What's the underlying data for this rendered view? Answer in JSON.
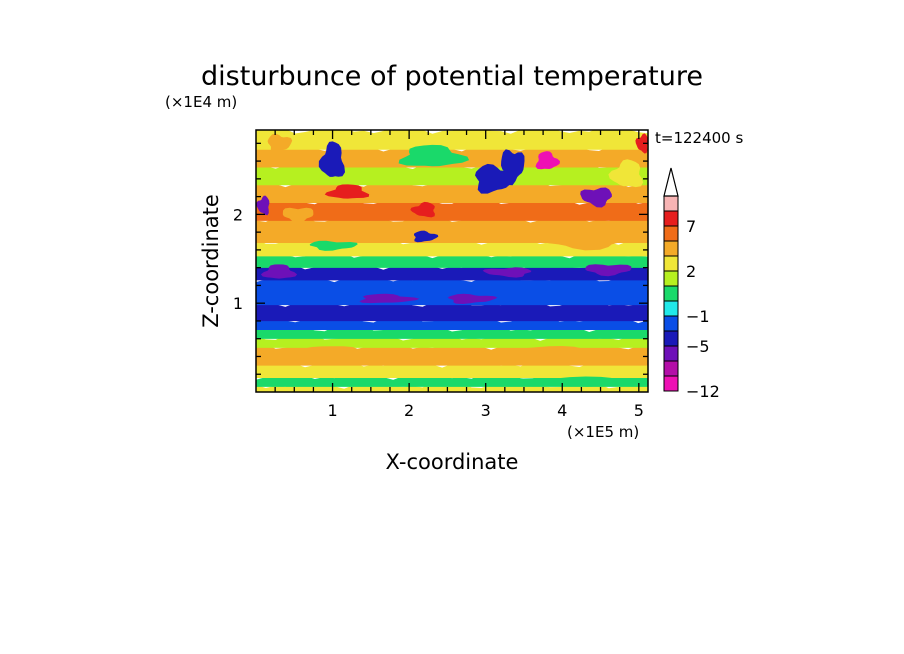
{
  "chart_data": {
    "type": "heatmap",
    "title": "disturbunce of potential temperature",
    "xlabel": "X-coordinate",
    "ylabel": "Z-coordinate",
    "x_unit": "(×1E5 m)",
    "y_unit": "(×1E4 m)",
    "time_label": "t=122400 s",
    "xlim": [
      0,
      5.12
    ],
    "ylim": [
      0,
      2.95
    ],
    "x_ticks": [
      1,
      2,
      3,
      4,
      5
    ],
    "y_ticks": [
      1,
      2
    ],
    "colorbar": {
      "levels": [
        -12,
        -9,
        -7,
        -5,
        -3,
        -1,
        0,
        1,
        2,
        3,
        5,
        7,
        9,
        12
      ],
      "colors": [
        "#ee10b4",
        "#b40ea8",
        "#6e10b8",
        "#1a1ab8",
        "#0a4ee6",
        "#21e9e9",
        "#1ad96a",
        "#b6f020",
        "#f0e638",
        "#f4aa28",
        "#f06c18",
        "#e61e1e",
        "#f7b4b4"
      ],
      "labels": [
        {
          "value": -12,
          "text": "−12"
        },
        {
          "value": -5,
          "text": "−5"
        },
        {
          "value": -1,
          "text": "−1"
        },
        {
          "value": 2,
          "text": "2"
        },
        {
          "value": 7,
          "text": "7"
        }
      ],
      "extend": "max"
    },
    "bands": [
      {
        "z": [
          0.0,
          0.08
        ],
        "value": 2.5
      },
      {
        "z": [
          0.08,
          0.18
        ],
        "value": 0.5
      },
      {
        "z": [
          0.18,
          0.32
        ],
        "value": 2.5
      },
      {
        "z": [
          0.32,
          0.52
        ],
        "value": 3.5
      },
      {
        "z": [
          0.52,
          0.62
        ],
        "value": 1.5
      },
      {
        "z": [
          0.62,
          0.72
        ],
        "value": 0.5
      },
      {
        "z": [
          0.72,
          0.82
        ],
        "value": -2
      },
      {
        "z": [
          0.82,
          1.0
        ],
        "value": -4
      },
      {
        "z": [
          1.0,
          1.28
        ],
        "value": -2
      },
      {
        "z": [
          1.28,
          1.42
        ],
        "value": -4
      },
      {
        "z": [
          1.42,
          1.55
        ],
        "value": 0.5
      },
      {
        "z": [
          1.55,
          1.7
        ],
        "value": 2.5
      },
      {
        "z": [
          1.7,
          1.95
        ],
        "value": 3.5
      },
      {
        "z": [
          1.95,
          2.15
        ],
        "value": 6
      },
      {
        "z": [
          2.15,
          2.35
        ],
        "value": 3.5
      },
      {
        "z": [
          2.35,
          2.55
        ],
        "value": 1.5
      },
      {
        "z": [
          2.55,
          2.75
        ],
        "value": 4
      },
      {
        "z": [
          2.75,
          2.95
        ],
        "value": 2.5
      }
    ],
    "features": [
      {
        "x": 0.3,
        "z": 1.35,
        "rx": 0.2,
        "rz": 0.08,
        "value": -6
      },
      {
        "x": 1.7,
        "z": 1.05,
        "rx": 0.35,
        "rz": 0.05,
        "value": -6
      },
      {
        "x": 2.8,
        "z": 1.05,
        "rx": 0.3,
        "rz": 0.05,
        "value": -6
      },
      {
        "x": 4.6,
        "z": 1.38,
        "rx": 0.3,
        "rz": 0.06,
        "value": -6
      },
      {
        "x": 3.3,
        "z": 1.35,
        "rx": 0.3,
        "rz": 0.05,
        "value": -6
      },
      {
        "x": 2.2,
        "z": 2.05,
        "rx": 0.15,
        "rz": 0.08,
        "value": 8
      },
      {
        "x": 1.2,
        "z": 2.25,
        "rx": 0.25,
        "rz": 0.08,
        "value": 8
      },
      {
        "x": 3.8,
        "z": 2.6,
        "rx": 0.14,
        "rz": 0.1,
        "value": -10
      },
      {
        "x": 3.1,
        "z": 2.4,
        "rx": 0.25,
        "rz": 0.15,
        "value": -4
      },
      {
        "x": 3.35,
        "z": 2.55,
        "rx": 0.15,
        "rz": 0.18,
        "value": -4
      },
      {
        "x": 4.45,
        "z": 2.2,
        "rx": 0.2,
        "rz": 0.1,
        "value": -6
      },
      {
        "x": 0.1,
        "z": 2.1,
        "rx": 0.08,
        "rz": 0.1,
        "value": -6
      },
      {
        "x": 1.0,
        "z": 2.6,
        "rx": 0.15,
        "rz": 0.2,
        "value": -4
      },
      {
        "x": 2.3,
        "z": 2.65,
        "rx": 0.4,
        "rz": 0.12,
        "value": 0.5
      },
      {
        "x": 2.2,
        "z": 1.75,
        "rx": 0.15,
        "rz": 0.06,
        "value": -4
      },
      {
        "x": 1.0,
        "z": 1.65,
        "rx": 0.3,
        "rz": 0.05,
        "value": 0.5
      },
      {
        "x": 4.3,
        "z": 1.72,
        "rx": 0.6,
        "rz": 0.1,
        "value": 3.5
      },
      {
        "x": 5.05,
        "z": 2.8,
        "rx": 0.08,
        "rz": 0.1,
        "value": 8
      },
      {
        "x": 4.85,
        "z": 2.45,
        "rx": 0.2,
        "rz": 0.15,
        "value": 2.5
      },
      {
        "x": 1.0,
        "z": 0.45,
        "rx": 0.5,
        "rz": 0.06,
        "value": 4
      },
      {
        "x": 4.0,
        "z": 0.45,
        "rx": 0.6,
        "rz": 0.06,
        "value": 4
      },
      {
        "x": 0.3,
        "z": 2.8,
        "rx": 0.15,
        "rz": 0.1,
        "value": 4
      },
      {
        "x": 0.55,
        "z": 2.0,
        "rx": 0.2,
        "rz": 0.08,
        "value": 3.5
      },
      {
        "x": 4.1,
        "z": 0.12,
        "rx": 0.7,
        "rz": 0.05,
        "value": 0.5
      }
    ]
  }
}
